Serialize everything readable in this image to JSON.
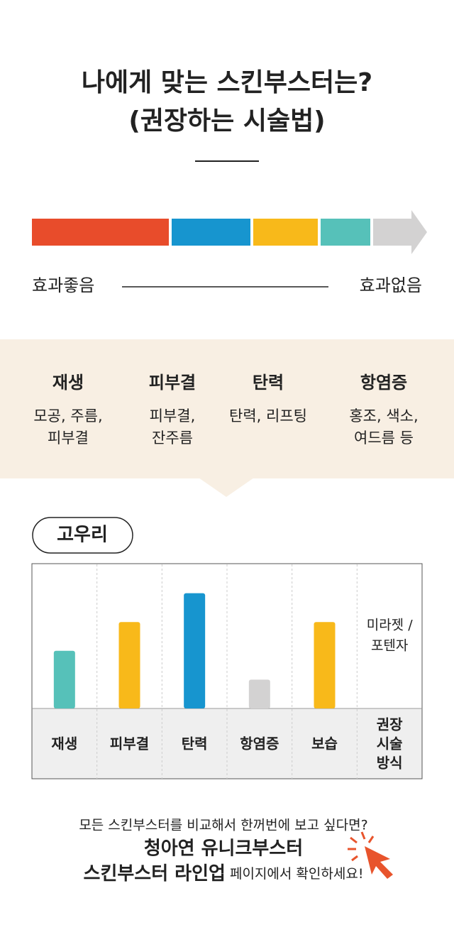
{
  "header": {
    "title": "나에게 맞는 스킨부스터는?",
    "subtitle": "(권장하는 시술법)"
  },
  "scale": {
    "colors": [
      "#e84c2b",
      "#1795cf",
      "#f8b91a",
      "#56c1b9",
      "#d3d2d2"
    ],
    "left_label": "효과좋음",
    "right_label": "효과없음"
  },
  "effects": [
    {
      "name": "재생",
      "desc": [
        "모공, 주름,",
        "피부결"
      ]
    },
    {
      "name": "피부결",
      "desc": [
        "피부결,",
        "잔주름"
      ]
    },
    {
      "name": "탄력",
      "desc": [
        "탄력, 리프팅"
      ]
    },
    {
      "name": "항염증",
      "desc": [
        "홍조, 색소,",
        "여드름 등"
      ]
    }
  ],
  "chart_data": {
    "type": "bar",
    "title": "고우리",
    "categories": [
      "재생",
      "피부결",
      "탄력",
      "항염증",
      "보습"
    ],
    "values": [
      2,
      3,
      4,
      1,
      3
    ],
    "colors": [
      "#56c1b9",
      "#f8b91a",
      "#1795cf",
      "#d3d2d2",
      "#f8b91a"
    ],
    "ylim": [
      0,
      5
    ],
    "method_header": [
      "권장",
      "시술",
      "방식"
    ],
    "method_value": [
      "미라젯 /",
      "포텐자"
    ]
  },
  "footer": {
    "line1": "모든 스킨부스터를 비교해서 한꺼번에 보고 싶다면?",
    "line2": "청아연 유니크부스터",
    "line3_bold": "스킨부스터 라인업",
    "line3_rest": " 페이지에서 확인하세요!"
  }
}
